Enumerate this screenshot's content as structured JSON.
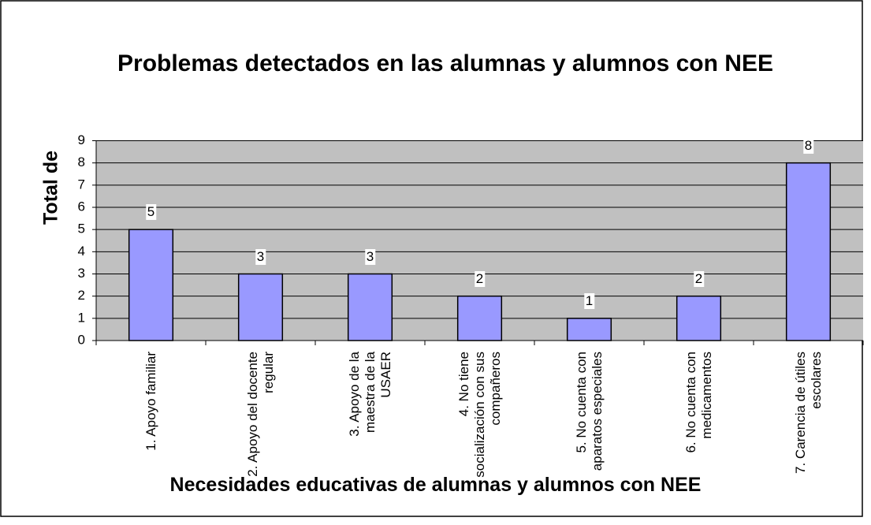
{
  "chart_data": {
    "type": "bar",
    "title": "Problemas detectados en las alumnas y alumnos con NEE",
    "x_label": "Necesidades educativas de alumnas y alumnos con NEE",
    "y_label": "Total de",
    "categories": [
      "1. Apoyo familiar",
      "2. Apoyo del docente regular",
      "3. Apoyo de la maestra de la USAER",
      "4. No tiene socialización con sus compañeros",
      "5. No cuenta con aparatos especiales",
      "6. No cuenta con medicamentos",
      "7. Carencia de útiles escolares"
    ],
    "values": [
      5,
      3,
      3,
      2,
      1,
      2,
      8
    ],
    "color": "#9999ff",
    "ylim": [
      0,
      9
    ],
    "yticks": [
      0,
      1,
      2,
      3,
      4,
      5,
      6,
      7,
      8,
      9
    ],
    "grid": true
  }
}
